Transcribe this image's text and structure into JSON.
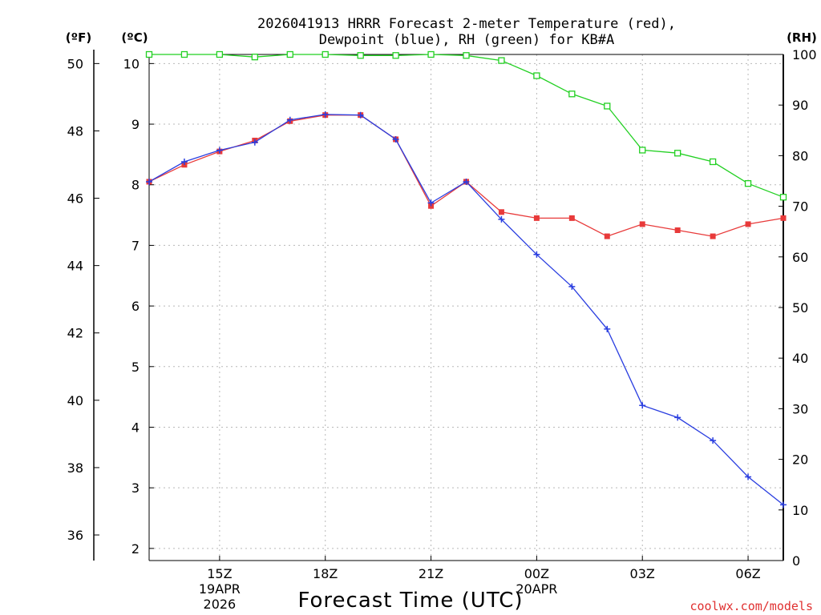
{
  "chart_data": {
    "type": "line",
    "title_line1": "2026041913 HRRR Forecast 2-meter Temperature (red),",
    "title_line2": "Dewpoint (blue), RH (green) for KB#A",
    "xlabel": "Forecast Time (UTC)",
    "credit": "coolwx.com/models",
    "units": {
      "fahrenheit": "(ºF)",
      "celsius": "(ºC)",
      "rh": "(RH)"
    },
    "x_hours": [
      13,
      14,
      15,
      16,
      17,
      18,
      19,
      20,
      21,
      22,
      23,
      24,
      25,
      26,
      27,
      28,
      29,
      30,
      31
    ],
    "xlim": [
      13,
      31
    ],
    "x_ticks": [
      {
        "hour": 15,
        "label": "15Z",
        "sub1": "19APR",
        "sub2": "2026"
      },
      {
        "hour": 18,
        "label": "18Z",
        "sub1": "",
        "sub2": ""
      },
      {
        "hour": 21,
        "label": "21Z",
        "sub1": "",
        "sub2": ""
      },
      {
        "hour": 24,
        "label": "00Z",
        "sub1": "20APR",
        "sub2": ""
      },
      {
        "hour": 27,
        "label": "03Z",
        "sub1": "",
        "sub2": ""
      },
      {
        "hour": 30,
        "label": "06Z",
        "sub1": "",
        "sub2": ""
      }
    ],
    "y_celsius": {
      "range": [
        1.8,
        10.15
      ],
      "ticks": [
        2,
        3,
        4,
        5,
        6,
        7,
        8,
        9,
        10
      ]
    },
    "y_fahrenheit": {
      "ticks": [
        36,
        38,
        40,
        42,
        44,
        46,
        48,
        50
      ]
    },
    "y_rh": {
      "range": [
        0,
        100
      ],
      "ticks": [
        0,
        10,
        20,
        30,
        40,
        50,
        60,
        70,
        80,
        90,
        100
      ]
    },
    "series": [
      {
        "name": "Temperature",
        "axis": "celsius",
        "color": "#e83a3a",
        "marker": "square",
        "values": [
          8.05,
          8.33,
          8.55,
          8.73,
          9.05,
          9.15,
          9.15,
          8.75,
          7.65,
          8.05,
          7.55,
          7.45,
          7.45,
          7.15,
          7.35,
          7.25,
          7.15,
          7.35,
          7.45
        ]
      },
      {
        "name": "Dewpoint",
        "axis": "celsius",
        "color": "#2a3ee0",
        "marker": "plus",
        "values": [
          8.05,
          8.38,
          8.57,
          8.7,
          9.07,
          9.16,
          9.15,
          8.75,
          7.7,
          8.05,
          7.43,
          6.85,
          6.32,
          5.62,
          4.36,
          4.16,
          3.78,
          3.18,
          2.72
        ]
      },
      {
        "name": "RH",
        "axis": "rh",
        "color": "#22d022",
        "marker": "open-square",
        "values": [
          100,
          100,
          100,
          99.5,
          100,
          100,
          99.8,
          99.8,
          100,
          99.8,
          98.8,
          95.8,
          92.2,
          89.8,
          81.1,
          80.5,
          78.8,
          74.5,
          71.8
        ]
      }
    ]
  }
}
